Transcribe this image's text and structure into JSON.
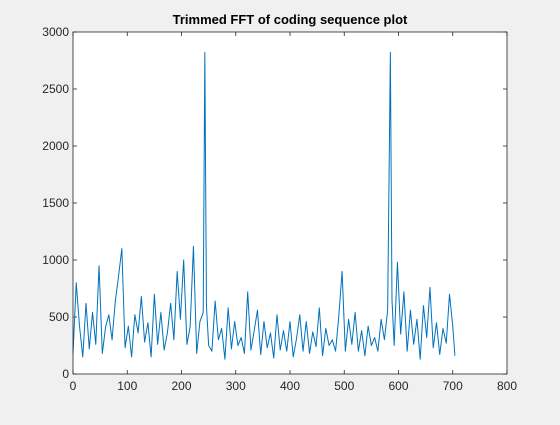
{
  "figure": {
    "background": "#f0f0f0"
  },
  "chart_data": {
    "type": "line",
    "title": "Trimmed FFT of coding sequence plot",
    "xlabel": "",
    "ylabel": "",
    "xlim": [
      0,
      800
    ],
    "ylim": [
      0,
      3000
    ],
    "xticks": [
      0,
      100,
      200,
      300,
      400,
      500,
      600,
      700,
      800
    ],
    "yticks": [
      0,
      500,
      1000,
      1500,
      2000,
      2500,
      3000
    ],
    "grid": false,
    "colors": {
      "line": "#0072bd",
      "axes": "#262626",
      "plot_background": "#ffffff"
    },
    "series": [
      {
        "x": [
          0,
          6,
          12,
          18,
          24,
          30,
          36,
          42,
          48,
          54,
          60,
          66,
          72,
          78,
          84,
          90,
          96,
          102,
          108,
          114,
          120,
          126,
          132,
          138,
          144,
          150,
          156,
          162,
          168,
          174,
          180,
          186,
          192,
          198,
          204,
          210,
          216,
          222,
          228,
          234,
          240,
          243,
          246,
          250,
          256,
          262,
          268,
          274,
          280,
          286,
          292,
          298,
          304,
          310,
          316,
          322,
          328,
          334,
          340,
          346,
          352,
          358,
          364,
          370,
          376,
          382,
          388,
          394,
          400,
          406,
          412,
          418,
          424,
          430,
          436,
          442,
          448,
          454,
          460,
          466,
          472,
          478,
          484,
          490,
          496,
          502,
          508,
          514,
          520,
          526,
          532,
          538,
          544,
          550,
          556,
          562,
          568,
          574,
          580,
          585,
          588,
          592,
          598,
          604,
          610,
          616,
          622,
          628,
          634,
          640,
          646,
          652,
          658,
          664,
          670,
          676,
          682,
          688,
          694,
          700,
          704
        ],
        "y": [
          180,
          800,
          420,
          150,
          620,
          220,
          540,
          260,
          950,
          180,
          410,
          520,
          300,
          640,
          860,
          1100,
          230,
          420,
          150,
          520,
          360,
          680,
          280,
          450,
          150,
          700,
          260,
          540,
          210,
          360,
          620,
          300,
          900,
          480,
          1000,
          260,
          420,
          1120,
          180,
          460,
          540,
          2820,
          600,
          250,
          200,
          640,
          300,
          400,
          130,
          580,
          220,
          460,
          250,
          320,
          180,
          720,
          210,
          380,
          560,
          170,
          460,
          230,
          360,
          140,
          520,
          210,
          380,
          200,
          460,
          150,
          310,
          520,
          200,
          460,
          180,
          370,
          240,
          580,
          160,
          400,
          250,
          300,
          200,
          510,
          900,
          200,
          480,
          260,
          540,
          200,
          380,
          160,
          420,
          250,
          320,
          200,
          480,
          300,
          560,
          2820,
          650,
          250,
          980,
          350,
          720,
          200,
          560,
          260,
          480,
          130,
          600,
          320,
          760,
          230,
          450,
          170,
          400,
          270,
          700,
          420,
          160
        ]
      }
    ]
  }
}
